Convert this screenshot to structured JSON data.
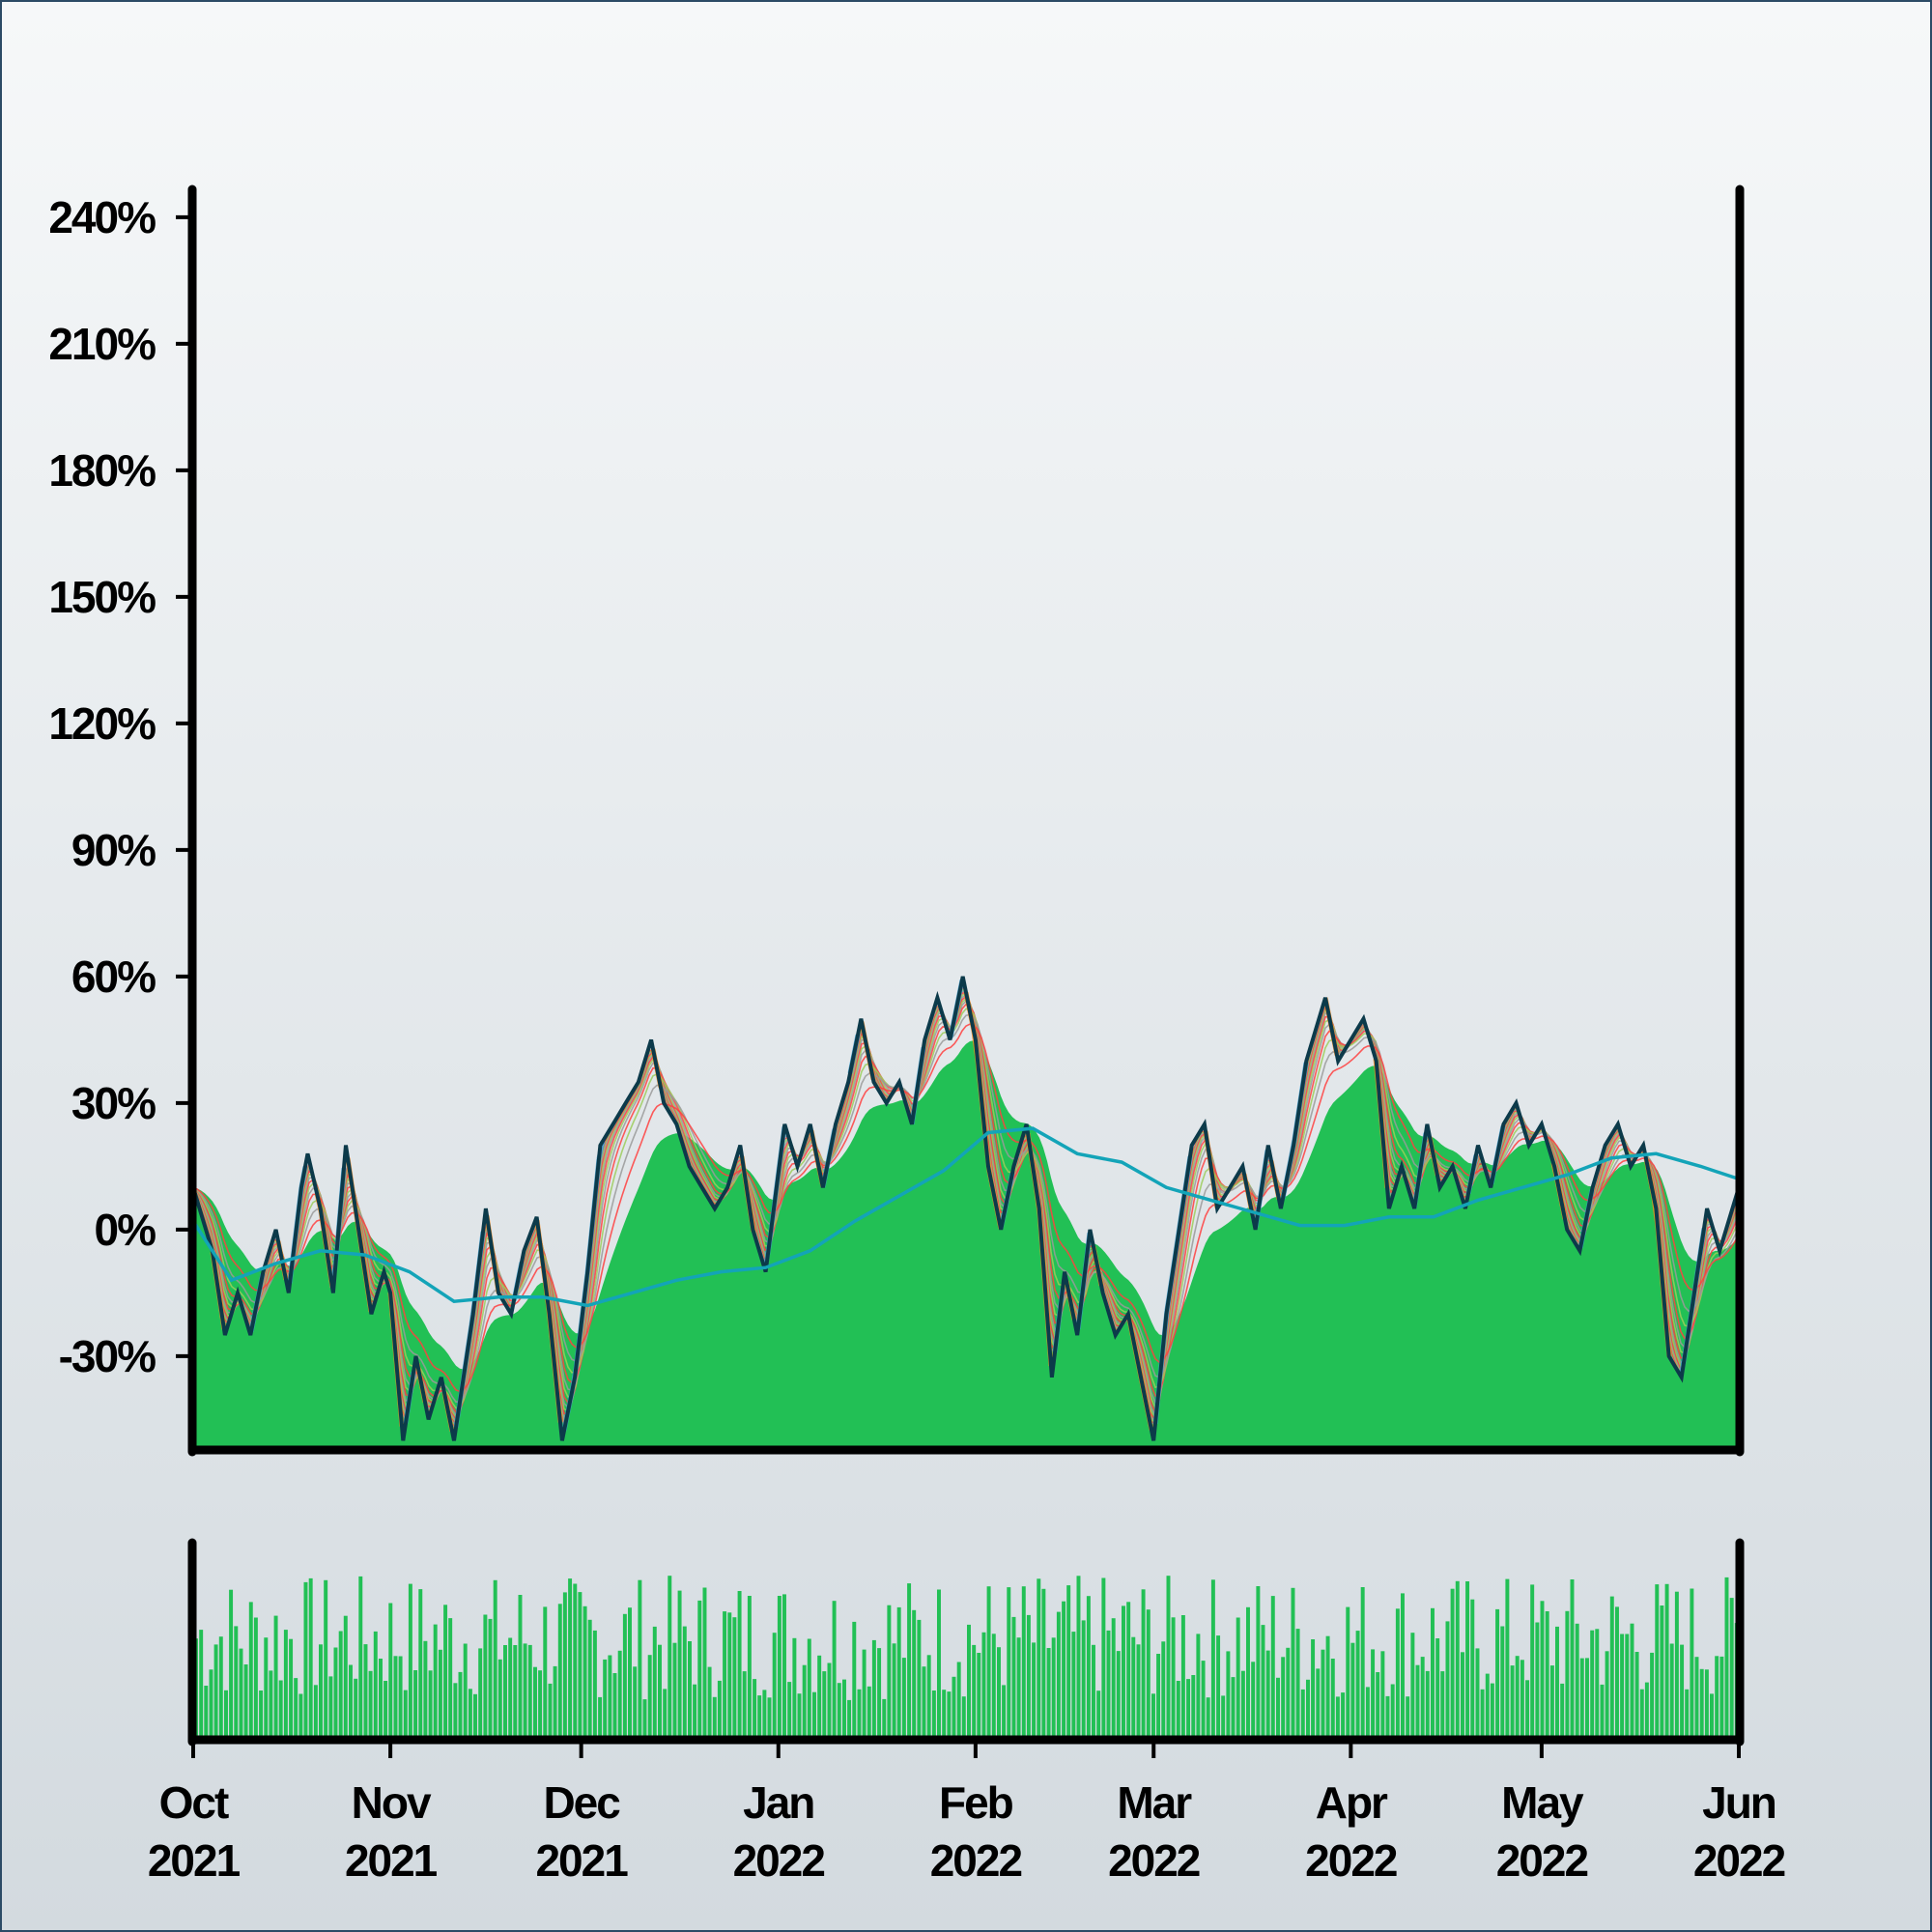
{
  "colors": {
    "background_top": "#f6f8f9",
    "background_bottom": "#d3dadf",
    "frame": "#2c4b66",
    "area_fill": "#22c055",
    "price_line": "#0c3a4a",
    "moving_average": "#13a4b8",
    "ribbon_gray": "#9a9a9a",
    "ribbon_red": "#ff4040",
    "ribbon_green": "#9ccc5c",
    "ribbon_orange": "#ff8c1a",
    "ribbon_blue": "#3aa0d6",
    "volume_bar": "#22c055",
    "axis": "#000000"
  },
  "chart_data": {
    "type": "area",
    "title": "",
    "xlabel": "",
    "ylabel": "",
    "x_range": [
      "2021-10-01",
      "2022-06-01"
    ],
    "x_ticks": [
      {
        "date": "2021-10-01",
        "month": "Oct",
        "year": "2021"
      },
      {
        "date": "2021-11-01",
        "month": "Nov",
        "year": "2021"
      },
      {
        "date": "2021-12-01",
        "month": "Dec",
        "year": "2021"
      },
      {
        "date": "2022-01-01",
        "month": "Jan",
        "year": "2022"
      },
      {
        "date": "2022-02-01",
        "month": "Feb",
        "year": "2022"
      },
      {
        "date": "2022-03-01",
        "month": "Mar",
        "year": "2022"
      },
      {
        "date": "2022-04-01",
        "month": "Apr",
        "year": "2022"
      },
      {
        "date": "2022-05-01",
        "month": "May",
        "year": "2022"
      },
      {
        "date": "2022-06-01",
        "month": "Jun",
        "year": "2022"
      }
    ],
    "ylim": [
      -52,
      248
    ],
    "y_ticks": [
      -30,
      0,
      30,
      60,
      90,
      120,
      150,
      180,
      210,
      240
    ],
    "y_tick_labels": [
      "-30%",
      "0%",
      "30%",
      "60%",
      "90%",
      "120%",
      "150%",
      "180%",
      "210%",
      "240%"
    ],
    "grid": false,
    "legend": "none",
    "price_series": [
      [
        "2021-10-01",
        10
      ],
      [
        "2021-10-04",
        -5
      ],
      [
        "2021-10-06",
        -25
      ],
      [
        "2021-10-08",
        -15
      ],
      [
        "2021-10-10",
        -25
      ],
      [
        "2021-10-12",
        -10
      ],
      [
        "2021-10-14",
        0
      ],
      [
        "2021-10-16",
        -15
      ],
      [
        "2021-10-18",
        10
      ],
      [
        "2021-10-19",
        18
      ],
      [
        "2021-10-21",
        5
      ],
      [
        "2021-10-23",
        -15
      ],
      [
        "2021-10-25",
        20
      ],
      [
        "2021-10-27",
        0
      ],
      [
        "2021-10-29",
        -20
      ],
      [
        "2021-10-31",
        -10
      ],
      [
        "2021-11-01",
        -15
      ],
      [
        "2021-11-03",
        -50
      ],
      [
        "2021-11-05",
        -30
      ],
      [
        "2021-11-07",
        -45
      ],
      [
        "2021-11-09",
        -35
      ],
      [
        "2021-11-11",
        -50
      ],
      [
        "2021-11-14",
        -20
      ],
      [
        "2021-11-16",
        5
      ],
      [
        "2021-11-18",
        -15
      ],
      [
        "2021-11-20",
        -20
      ],
      [
        "2021-11-22",
        -5
      ],
      [
        "2021-11-24",
        3
      ],
      [
        "2021-11-26",
        -20
      ],
      [
        "2021-11-28",
        -50
      ],
      [
        "2021-11-30",
        -35
      ],
      [
        "2021-12-02",
        -10
      ],
      [
        "2021-12-04",
        20
      ],
      [
        "2021-12-06",
        25
      ],
      [
        "2021-12-08",
        30
      ],
      [
        "2021-12-10",
        35
      ],
      [
        "2021-12-12",
        45
      ],
      [
        "2021-12-14",
        30
      ],
      [
        "2021-12-16",
        25
      ],
      [
        "2021-12-18",
        15
      ],
      [
        "2021-12-20",
        10
      ],
      [
        "2021-12-22",
        5
      ],
      [
        "2021-12-24",
        10
      ],
      [
        "2021-12-26",
        20
      ],
      [
        "2021-12-28",
        0
      ],
      [
        "2021-12-30",
        -10
      ],
      [
        "2022-01-02",
        25
      ],
      [
        "2022-01-04",
        15
      ],
      [
        "2022-01-06",
        25
      ],
      [
        "2022-01-08",
        10
      ],
      [
        "2022-01-10",
        25
      ],
      [
        "2022-01-12",
        35
      ],
      [
        "2022-01-14",
        50
      ],
      [
        "2022-01-16",
        35
      ],
      [
        "2022-01-18",
        30
      ],
      [
        "2022-01-20",
        35
      ],
      [
        "2022-01-22",
        25
      ],
      [
        "2022-01-24",
        45
      ],
      [
        "2022-01-26",
        55
      ],
      [
        "2022-01-28",
        45
      ],
      [
        "2022-01-30",
        60
      ],
      [
        "2022-02-01",
        45
      ],
      [
        "2022-02-03",
        15
      ],
      [
        "2022-02-05",
        0
      ],
      [
        "2022-02-07",
        15
      ],
      [
        "2022-02-09",
        25
      ],
      [
        "2022-02-11",
        5
      ],
      [
        "2022-02-13",
        -35
      ],
      [
        "2022-02-15",
        -10
      ],
      [
        "2022-02-17",
        -25
      ],
      [
        "2022-02-19",
        0
      ],
      [
        "2022-02-21",
        -15
      ],
      [
        "2022-02-23",
        -25
      ],
      [
        "2022-02-25",
        -20
      ],
      [
        "2022-03-01",
        -50
      ],
      [
        "2022-03-03",
        -20
      ],
      [
        "2022-03-05",
        0
      ],
      [
        "2022-03-07",
        20
      ],
      [
        "2022-03-09",
        25
      ],
      [
        "2022-03-11",
        5
      ],
      [
        "2022-03-13",
        10
      ],
      [
        "2022-03-15",
        15
      ],
      [
        "2022-03-17",
        0
      ],
      [
        "2022-03-19",
        20
      ],
      [
        "2022-03-21",
        5
      ],
      [
        "2022-03-23",
        20
      ],
      [
        "2022-03-25",
        40
      ],
      [
        "2022-03-28",
        55
      ],
      [
        "2022-03-30",
        40
      ],
      [
        "2022-04-01",
        45
      ],
      [
        "2022-04-03",
        50
      ],
      [
        "2022-04-05",
        40
      ],
      [
        "2022-04-07",
        5
      ],
      [
        "2022-04-09",
        15
      ],
      [
        "2022-04-11",
        5
      ],
      [
        "2022-04-13",
        25
      ],
      [
        "2022-04-15",
        10
      ],
      [
        "2022-04-17",
        15
      ],
      [
        "2022-04-19",
        5
      ],
      [
        "2022-04-21",
        20
      ],
      [
        "2022-04-23",
        10
      ],
      [
        "2022-04-25",
        25
      ],
      [
        "2022-04-27",
        30
      ],
      [
        "2022-04-29",
        20
      ],
      [
        "2022-05-01",
        25
      ],
      [
        "2022-05-03",
        15
      ],
      [
        "2022-05-05",
        0
      ],
      [
        "2022-05-07",
        -5
      ],
      [
        "2022-05-09",
        10
      ],
      [
        "2022-05-11",
        20
      ],
      [
        "2022-05-13",
        25
      ],
      [
        "2022-05-15",
        15
      ],
      [
        "2022-05-17",
        20
      ],
      [
        "2022-05-19",
        5
      ],
      [
        "2022-05-21",
        -30
      ],
      [
        "2022-05-23",
        -35
      ],
      [
        "2022-05-25",
        -15
      ],
      [
        "2022-05-27",
        5
      ],
      [
        "2022-05-29",
        -5
      ],
      [
        "2022-06-01",
        10
      ]
    ],
    "moving_average": [
      [
        "2021-10-01",
        2
      ],
      [
        "2021-10-07",
        -12
      ],
      [
        "2021-10-14",
        -8
      ],
      [
        "2021-10-21",
        -5
      ],
      [
        "2021-10-28",
        -6
      ],
      [
        "2021-11-04",
        -10
      ],
      [
        "2021-11-11",
        -17
      ],
      [
        "2021-11-18",
        -16
      ],
      [
        "2021-11-25",
        -16
      ],
      [
        "2021-12-02",
        -18
      ],
      [
        "2021-12-09",
        -15
      ],
      [
        "2021-12-16",
        -12
      ],
      [
        "2021-12-23",
        -10
      ],
      [
        "2021-12-30",
        -9
      ],
      [
        "2022-01-06",
        -5
      ],
      [
        "2022-01-13",
        2
      ],
      [
        "2022-01-20",
        8
      ],
      [
        "2022-01-27",
        14
      ],
      [
        "2022-02-03",
        23
      ],
      [
        "2022-02-10",
        24
      ],
      [
        "2022-02-17",
        18
      ],
      [
        "2022-02-24",
        16
      ],
      [
        "2022-03-03",
        10
      ],
      [
        "2022-03-10",
        7
      ],
      [
        "2022-03-17",
        4
      ],
      [
        "2022-03-24",
        1
      ],
      [
        "2022-03-31",
        1
      ],
      [
        "2022-04-07",
        3
      ],
      [
        "2022-04-14",
        3
      ],
      [
        "2022-04-21",
        7
      ],
      [
        "2022-04-28",
        10
      ],
      [
        "2022-05-05",
        13
      ],
      [
        "2022-05-12",
        17
      ],
      [
        "2022-05-19",
        18
      ],
      [
        "2022-05-26",
        15
      ],
      [
        "2022-06-01",
        12
      ]
    ],
    "volume_series_count": 310
  }
}
